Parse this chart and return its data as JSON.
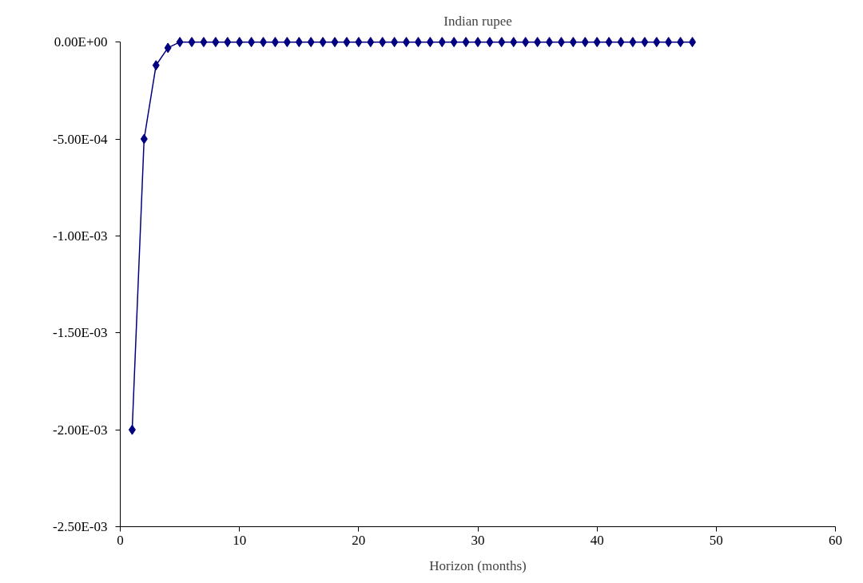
{
  "chart_data": {
    "type": "line",
    "title": "Indian rupee",
    "xlabel": "Horizon (months)",
    "x": [
      1,
      2,
      3,
      4,
      5,
      6,
      7,
      8,
      9,
      10,
      11,
      12,
      13,
      14,
      15,
      16,
      17,
      18,
      19,
      20,
      21,
      22,
      23,
      24,
      25,
      26,
      27,
      28,
      29,
      30,
      31,
      32,
      33,
      34,
      35,
      36,
      37,
      38,
      39,
      40,
      41,
      42,
      43,
      44,
      45,
      46,
      47,
      48
    ],
    "series": [
      {
        "color": "#000080",
        "values": [
          -0.002,
          -0.0005,
          -0.00012,
          -3e-05,
          0,
          0,
          0,
          0,
          0,
          0,
          0,
          0,
          0,
          0,
          0,
          0,
          0,
          0,
          0,
          0,
          0,
          0,
          0,
          0,
          0,
          0,
          0,
          0,
          0,
          0,
          0,
          0,
          0,
          0,
          0,
          0,
          0,
          0,
          0,
          0,
          0,
          0,
          0,
          0,
          0,
          0,
          0,
          0
        ]
      }
    ],
    "xlim": [
      0,
      60
    ],
    "xticks": [
      0,
      10,
      20,
      30,
      40,
      50,
      60
    ],
    "ylim": [
      -0.0025,
      0.0
    ],
    "yticks": [
      {
        "value": 0.0,
        "label": "0.00E+00"
      },
      {
        "value": -0.0005,
        "label": "-5.00E-04"
      },
      {
        "value": -0.001,
        "label": "-1.00E-03"
      },
      {
        "value": -0.0015,
        "label": "-1.50E-03"
      },
      {
        "value": -0.002,
        "label": "-2.00E-03"
      },
      {
        "value": -0.0025,
        "label": "-2.50E-03"
      }
    ],
    "marker": "diamond",
    "line_style": "solid",
    "grid": false
  }
}
